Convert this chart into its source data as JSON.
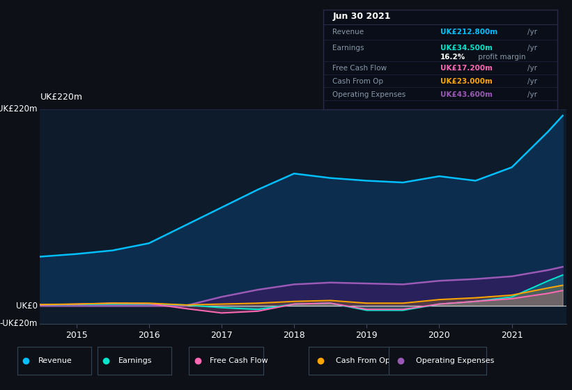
{
  "background_color": "#0d1117",
  "plot_bg_color": "#0d1b2a",
  "ylim": [
    -20,
    220
  ],
  "xlim": [
    2014.5,
    2021.75
  ],
  "xticks": [
    2015,
    2016,
    2017,
    2018,
    2019,
    2020,
    2021
  ],
  "grid_color": "#1e2d45",
  "legend_items": [
    "Revenue",
    "Earnings",
    "Free Cash Flow",
    "Cash From Op",
    "Operating Expenses"
  ],
  "legend_colors": [
    "#00bfff",
    "#00e5cc",
    "#ff69b4",
    "#ffa500",
    "#9b59b6"
  ],
  "info_box": {
    "date": "Jun 30 2021",
    "revenue_label": "Revenue",
    "revenue_value": "UK£212.800m",
    "earnings_label": "Earnings",
    "earnings_value": "UK£34.500m",
    "profit_margin": "16.2%",
    "fcf_label": "Free Cash Flow",
    "fcf_value": "UK£17.200m",
    "cfo_label": "Cash From Op",
    "cfo_value": "UK£23.000m",
    "opex_label": "Operating Expenses",
    "opex_value": "UK£43.600m"
  },
  "series": {
    "years": [
      2014.5,
      2015.0,
      2015.5,
      2016.0,
      2016.5,
      2017.0,
      2017.5,
      2018.0,
      2018.5,
      2019.0,
      2019.5,
      2020.0,
      2020.5,
      2021.0,
      2021.5,
      2021.7
    ],
    "revenue": [
      55,
      58,
      62,
      70,
      90,
      110,
      130,
      148,
      143,
      140,
      138,
      145,
      140,
      155,
      195,
      212.8
    ],
    "earnings": [
      1,
      1.5,
      2,
      2,
      1,
      -2,
      -4,
      2,
      3,
      -5,
      -5,
      2,
      5,
      10,
      28,
      34.5
    ],
    "fcf": [
      1,
      2,
      3,
      2.5,
      -3,
      -8,
      -6,
      2,
      3,
      -4,
      -4,
      2,
      5,
      8,
      14,
      17.2
    ],
    "cfo": [
      1.5,
      2,
      3,
      3,
      1,
      2,
      3,
      5,
      6,
      3,
      3,
      7,
      9,
      12,
      20,
      23.0
    ],
    "opex": [
      0,
      0,
      0,
      0,
      0,
      10,
      18,
      24,
      26,
      25,
      24,
      28,
      30,
      33,
      40,
      43.6
    ]
  },
  "rev_fill_color": "#0d2d4e",
  "opex_fill_color": "#2d1f5e",
  "line_colors": {
    "revenue": "#00bfff",
    "earnings": "#00e5cc",
    "fcf": "#ff69b4",
    "cfo": "#ffa500",
    "opex": "#9b59b6"
  },
  "text_color": "#ffffff",
  "dim_text_color": "#8899aa",
  "infobox_bg": "#0a0e18",
  "infobox_border": "#2a2a4a"
}
